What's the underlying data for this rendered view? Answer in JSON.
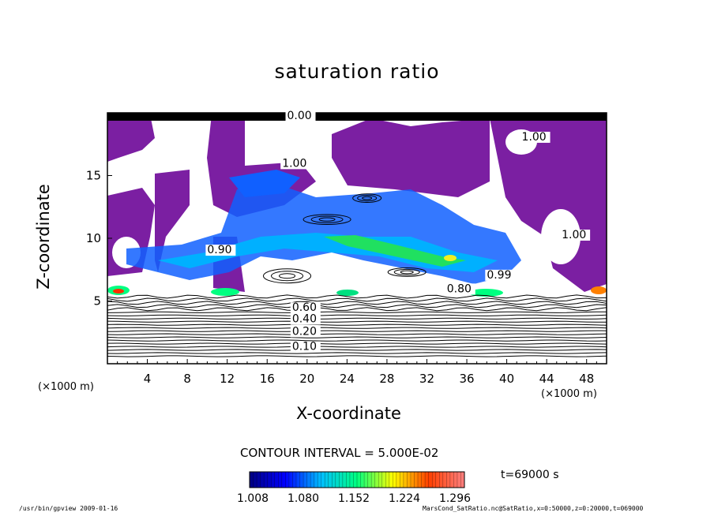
{
  "chart_data": {
    "type": "heatmap",
    "title": "saturation ratio",
    "xlabel": "X-coordinate",
    "ylabel": "Z-coordinate",
    "x_unit": "(×1000 m)",
    "y_unit": "(×1000 m)",
    "xlim": [
      0,
      50
    ],
    "ylim": [
      0,
      20
    ],
    "x_ticks": [
      4,
      8,
      12,
      16,
      20,
      24,
      28,
      32,
      36,
      40,
      44,
      48
    ],
    "y_ticks": [
      5,
      10,
      15
    ],
    "contour_interval": "CONTOUR INTERVAL = 5.000E-02",
    "contour_labels": [
      {
        "text": "0.10",
        "x": 18.5,
        "y": 1.1
      },
      {
        "text": "0.20",
        "x": 18.5,
        "y": 2.3
      },
      {
        "text": "0.40",
        "x": 18.5,
        "y": 3.3
      },
      {
        "text": "0.60",
        "x": 18.5,
        "y": 4.2
      },
      {
        "text": "0.80",
        "x": 34.0,
        "y": 5.7
      },
      {
        "text": "0.90",
        "x": 10.0,
        "y": 8.8
      },
      {
        "text": "0.99",
        "x": 38.0,
        "y": 6.8
      },
      {
        "text": "1.00",
        "x": 17.5,
        "y": 15.7
      },
      {
        "text": "1.00",
        "x": 41.5,
        "y": 17.8
      },
      {
        "text": "1.00",
        "x": 45.5,
        "y": 10.0
      },
      {
        "text": "0.00",
        "x": 18.0,
        "y": 19.5
      }
    ],
    "colorbar": {
      "ticks": [
        "1.008",
        "1.080",
        "1.152",
        "1.224",
        "1.296"
      ],
      "colors": [
        "#000080",
        "#0000ff",
        "#00bfff",
        "#00ff80",
        "#ffff00",
        "#ff4000",
        "#ff8080"
      ]
    },
    "time_label": "t=69000 s"
  },
  "footer": {
    "left": "/usr/bin/gpview  2009-01-16",
    "right": "MarsCond_SatRatio.nc@SatRatio,x=0:50000,z=0:20000,t=069000"
  }
}
